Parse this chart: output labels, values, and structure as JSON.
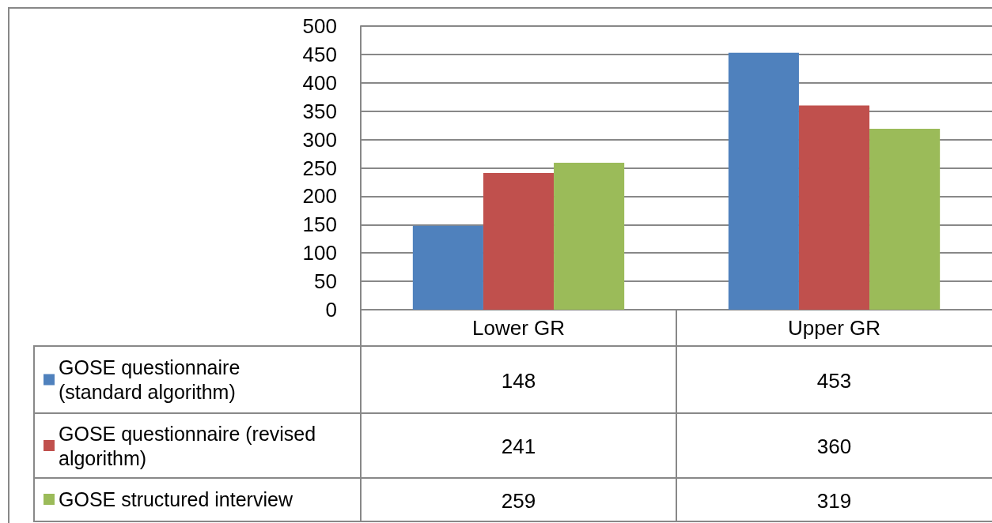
{
  "chart_data": {
    "type": "bar",
    "categories": [
      "Lower GR",
      "Upper GR"
    ],
    "series": [
      {
        "name": "GOSE questionnaire (standard algorithm)",
        "color": "#4f81bd",
        "values": [
          148,
          453
        ]
      },
      {
        "name": "GOSE questionnaire (revised algorithm)",
        "color": "#c0504d",
        "values": [
          241,
          360
        ]
      },
      {
        "name": "GOSE structured interview",
        "color": "#9bbb59",
        "values": [
          259,
          319
        ]
      }
    ],
    "ylim": [
      0,
      500
    ],
    "yticks": [
      0,
      50,
      100,
      150,
      200,
      250,
      300,
      350,
      400,
      450,
      500
    ],
    "grid": "y",
    "legend": "bottom",
    "data_labels": true
  }
}
